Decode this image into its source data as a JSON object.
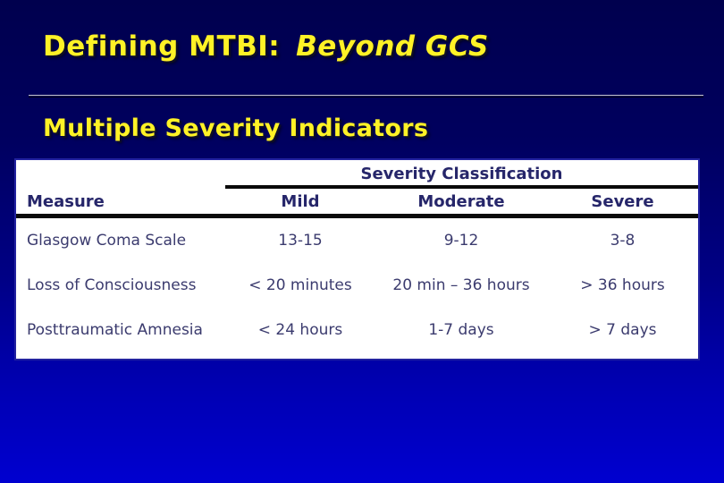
{
  "slide": {
    "title": {
      "main": "Defining MTBI:",
      "emphasis": "Beyond GCS"
    },
    "subtitle": "Multiple Severity Indicators"
  },
  "table": {
    "group_header": "Severity Classification",
    "columns": [
      "Measure",
      "Mild",
      "Moderate",
      "Severe"
    ],
    "rows": [
      {
        "measure": "Glasgow Coma Scale",
        "mild": "13-15",
        "moderate": "9-12",
        "severe": "3-8"
      },
      {
        "measure": "Loss of Consciousness",
        "mild": "< 20 minutes",
        "moderate": "20 min – 36 hours",
        "severe": "> 36 hours"
      },
      {
        "measure": "Posttraumatic Amnesia",
        "mild": "< 24 hours",
        "moderate": "1-7 days",
        "severe": "> 7 days"
      }
    ]
  },
  "colors": {
    "background_top": "#00004E",
    "background_bottom": "#0000D0",
    "title_text": "#FFF226",
    "header_text": "#26266A",
    "body_text": "#3B3B6E",
    "table_border": "#2222A0",
    "rule_black": "#0A0A0A",
    "divider_gray": "#C8C8C8"
  }
}
